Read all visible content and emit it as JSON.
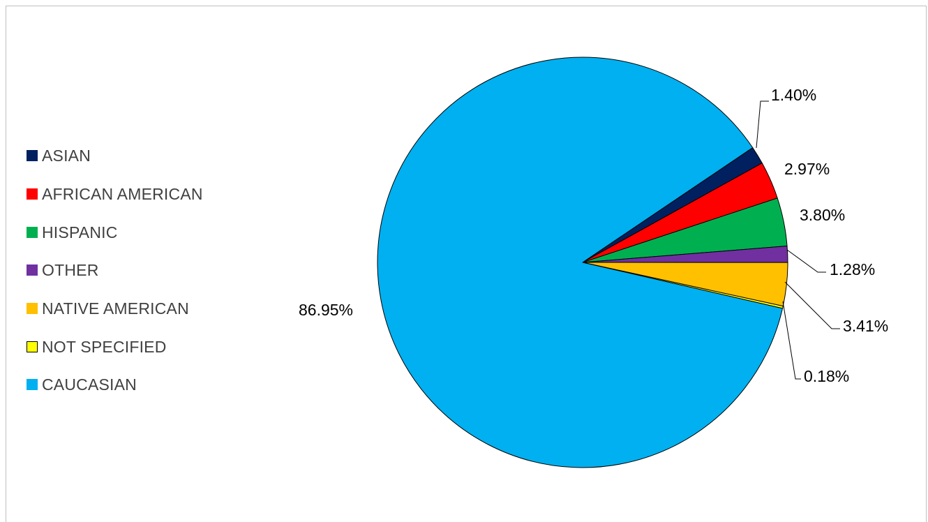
{
  "chart_data": {
    "type": "pie",
    "title": "",
    "legend_position": "left",
    "start_angle_deg": 56,
    "slices": [
      {
        "label": "ASIAN",
        "value": 1.4,
        "display": "1.40%",
        "color": "#002060"
      },
      {
        "label": "AFRICAN AMERICAN",
        "value": 2.97,
        "display": "2.97%",
        "color": "#FF0000"
      },
      {
        "label": "HISPANIC",
        "value": 3.8,
        "display": "3.80%",
        "color": "#00B050"
      },
      {
        "label": "OTHER",
        "value": 1.28,
        "display": "1.28%",
        "color": "#7030A0"
      },
      {
        "label": "NATIVE AMERICAN",
        "value": 3.41,
        "display": "3.41%",
        "color": "#FFC000"
      },
      {
        "label": "NOT SPECIFIED",
        "value": 0.18,
        "display": "0.18%",
        "color": "#FFFF00"
      },
      {
        "label": "CAUCASIAN",
        "value": 86.95,
        "display": "86.95%",
        "color": "#00B0F0"
      }
    ]
  }
}
